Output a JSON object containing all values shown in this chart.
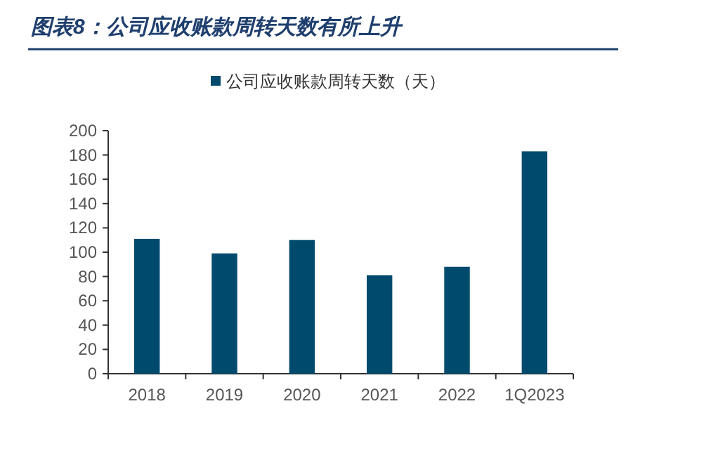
{
  "chart_data": {
    "type": "bar",
    "title": "图表8：公司应收账款周转天数有所上升",
    "categories": [
      "2018",
      "2019",
      "2020",
      "2021",
      "2022",
      "1Q2023"
    ],
    "series": [
      {
        "name": "公司应收账款周转天数（天）",
        "color": "#004a6e",
        "values": [
          111,
          99,
          110,
          81,
          88,
          183
        ]
      }
    ],
    "ylim": [
      0,
      200
    ],
    "yticks": [
      0,
      20,
      40,
      60,
      80,
      100,
      120,
      140,
      160,
      180,
      200
    ],
    "legend": "top"
  }
}
